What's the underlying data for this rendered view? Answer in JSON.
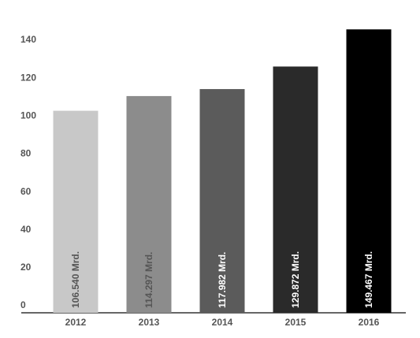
{
  "chart_data": {
    "type": "bar",
    "categories": [
      "2012",
      "2013",
      "2014",
      "2015",
      "2016"
    ],
    "values": [
      106.54,
      114.297,
      117.982,
      129.872,
      149.467
    ],
    "value_labels": [
      "106.540 Mrd.",
      "114.297 Mrd.",
      "117.982 Mrd.",
      "129.872 Mrd.",
      "149.467 Mrd."
    ],
    "colors": [
      "#c8c8c8",
      "#8c8c8c",
      "#5b5b5b",
      "#2a2a2a",
      "#000000"
    ],
    "ylim": [
      0,
      150
    ],
    "yticks": [
      0,
      20,
      40,
      60,
      80,
      100,
      120,
      140
    ],
    "grid": false
  }
}
